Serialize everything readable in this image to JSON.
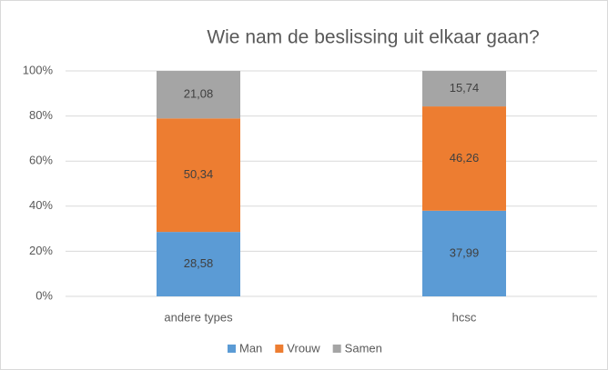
{
  "chart_data": {
    "type": "stacked_bar",
    "title": "Wie nam de beslissing uit elkaar gaan?",
    "categories": [
      "andere types",
      "hcsc"
    ],
    "series": [
      {
        "name": "Man",
        "color": "#5b9bd5",
        "values": [
          28.58,
          37.99
        ],
        "value_labels": [
          "28,58",
          "37,99"
        ]
      },
      {
        "name": "Vrouw",
        "color": "#ed7d31",
        "values": [
          50.34,
          46.26
        ],
        "value_labels": [
          "50,34",
          "46,26"
        ]
      },
      {
        "name": "Samen",
        "color": "#a5a5a5",
        "values": [
          21.08,
          15.74
        ],
        "value_labels": [
          "21,08",
          "15,74"
        ]
      }
    ],
    "ylim": [
      0,
      100
    ],
    "yticks": [
      {
        "value": 0,
        "label": "0%"
      },
      {
        "value": 20,
        "label": "20%"
      },
      {
        "value": 40,
        "label": "40%"
      },
      {
        "value": 60,
        "label": "60%"
      },
      {
        "value": 80,
        "label": "80%"
      },
      {
        "value": 100,
        "label": "100%"
      }
    ],
    "grid": true,
    "legend": "bottom"
  }
}
